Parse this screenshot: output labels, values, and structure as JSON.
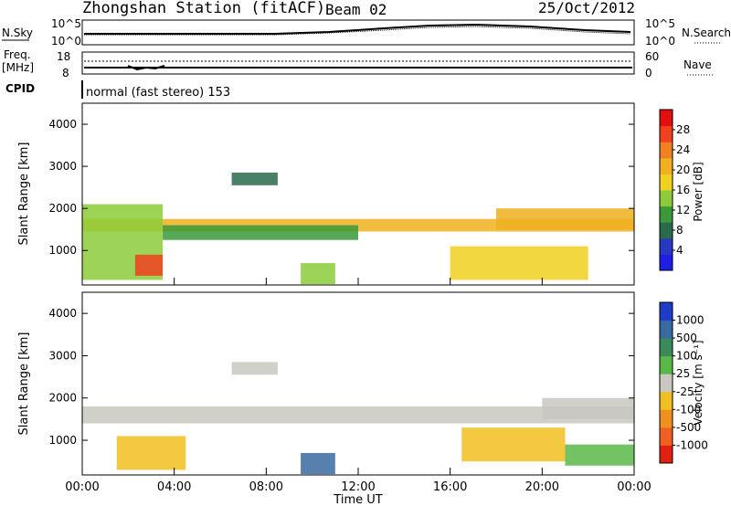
{
  "header": {
    "title": "Zhongshan Station (fitACF)",
    "beam": "Beam 02",
    "date": "25/Oct/2012"
  },
  "top_panels": {
    "nsky_label": "N.Sky",
    "nsearch_label": "N.Search",
    "freq_label_top": "Freq.",
    "freq_label_unit": "[MHz]",
    "nave_label": "Nave",
    "cpid_label": "CPID",
    "cpid_text": "normal (fast stereo) 153",
    "noise_ticks": [
      "10^5",
      "10^0"
    ],
    "freq_ticks": [
      "18",
      "8"
    ],
    "nave_ticks": [
      "60",
      "0"
    ]
  },
  "axes": {
    "ylabel": "Slant Range [km]",
    "xlabel": "Time UT",
    "yticks": [
      "4000",
      "3000",
      "2000",
      "1000"
    ],
    "xticks": [
      "00:00",
      "04:00",
      "08:00",
      "12:00",
      "16:00",
      "20:00",
      "00:00"
    ]
  },
  "colorbars": {
    "power": {
      "label": "Power [dB]",
      "ticks": [
        "28",
        "24",
        "20",
        "16",
        "12",
        "8",
        "4"
      ],
      "colors": [
        "#1e1ee6",
        "#2838c0",
        "#2a6a4a",
        "#3a9a3a",
        "#8ccc3a",
        "#f0d020",
        "#f0b020",
        "#f08020",
        "#f04020",
        "#e01010"
      ]
    },
    "velocity": {
      "label": "Velocity [m s⁻¹]",
      "ticks": [
        "1000",
        "500",
        "100",
        "25",
        "-25",
        "-100",
        "-500",
        "-1000"
      ],
      "colors": [
        "#1e3cc8",
        "#3a6aa0",
        "#3a8a5a",
        "#5ab84a",
        "#c8c8c0",
        "#f0c020",
        "#f09020",
        "#f06020",
        "#e02010"
      ]
    }
  },
  "chart_data": [
    {
      "type": "heatmap",
      "title": "Power",
      "xlabel": "Time UT",
      "ylabel": "Slant Range [km]",
      "xlim": [
        0,
        24
      ],
      "ylim": [
        180,
        4500
      ],
      "zlim": [
        0,
        30
      ],
      "zlabel": "Power [dB]",
      "regions": [
        {
          "t0": 0.0,
          "t1": 24.0,
          "r0": 1450,
          "r1": 1750,
          "z": 20
        },
        {
          "t0": 0.0,
          "t1": 3.5,
          "r0": 300,
          "r1": 2100,
          "z": 14
        },
        {
          "t0": 2.3,
          "t1": 3.5,
          "r0": 400,
          "r1": 900,
          "z": 24
        },
        {
          "t0": 3.5,
          "t1": 12.0,
          "r0": 1250,
          "r1": 1600,
          "z": 10
        },
        {
          "t0": 6.5,
          "t1": 8.5,
          "r0": 2550,
          "r1": 2850,
          "z": 8
        },
        {
          "t0": 9.5,
          "t1": 11.0,
          "r0": 200,
          "r1": 700,
          "z": 14
        },
        {
          "t0": 16.0,
          "t1": 22.0,
          "r0": 300,
          "r1": 1100,
          "z": 16
        },
        {
          "t0": 18.0,
          "t1": 24.0,
          "r0": 1500,
          "r1": 2000,
          "z": 18
        }
      ]
    },
    {
      "type": "heatmap",
      "title": "Velocity",
      "xlabel": "Time UT",
      "ylabel": "Slant Range [km]",
      "xlim": [
        0,
        24
      ],
      "ylim": [
        180,
        4500
      ],
      "zlim": [
        -1000,
        1000
      ],
      "zlabel": "Velocity [m s⁻¹]",
      "regions": [
        {
          "t0": 0.0,
          "t1": 24.0,
          "r0": 1400,
          "r1": 1800,
          "z": 0
        },
        {
          "t0": 1.5,
          "t1": 4.5,
          "r0": 300,
          "r1": 1100,
          "z": -300
        },
        {
          "t0": 6.5,
          "t1": 8.5,
          "r0": 2550,
          "r1": 2850,
          "z": 0
        },
        {
          "t0": 9.5,
          "t1": 11.0,
          "r0": 200,
          "r1": 700,
          "z": 700
        },
        {
          "t0": 16.5,
          "t1": 21.0,
          "r0": 500,
          "r1": 1300,
          "z": -300
        },
        {
          "t0": 21.0,
          "t1": 24.0,
          "r0": 400,
          "r1": 900,
          "z": 150
        },
        {
          "t0": 20.0,
          "t1": 24.0,
          "r0": 1500,
          "r1": 2000,
          "z": 0
        }
      ]
    }
  ]
}
